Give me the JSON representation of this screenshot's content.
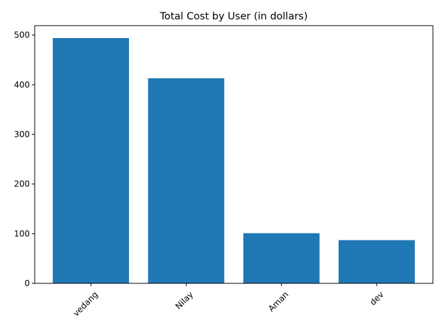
{
  "chart_data": {
    "type": "bar",
    "title": "Total Cost by User (in dollars)",
    "xlabel": "",
    "ylabel": "",
    "categories": [
      "vedang",
      "Nilay",
      "Aman",
      "dev"
    ],
    "values": [
      494,
      413,
      101,
      87
    ],
    "ylim": [
      0,
      519
    ],
    "yticks": [
      0,
      100,
      200,
      300,
      400,
      500
    ],
    "x_tick_rotation": 45,
    "bar_color": "#1f77b4",
    "grid": false,
    "legend": "none"
  }
}
